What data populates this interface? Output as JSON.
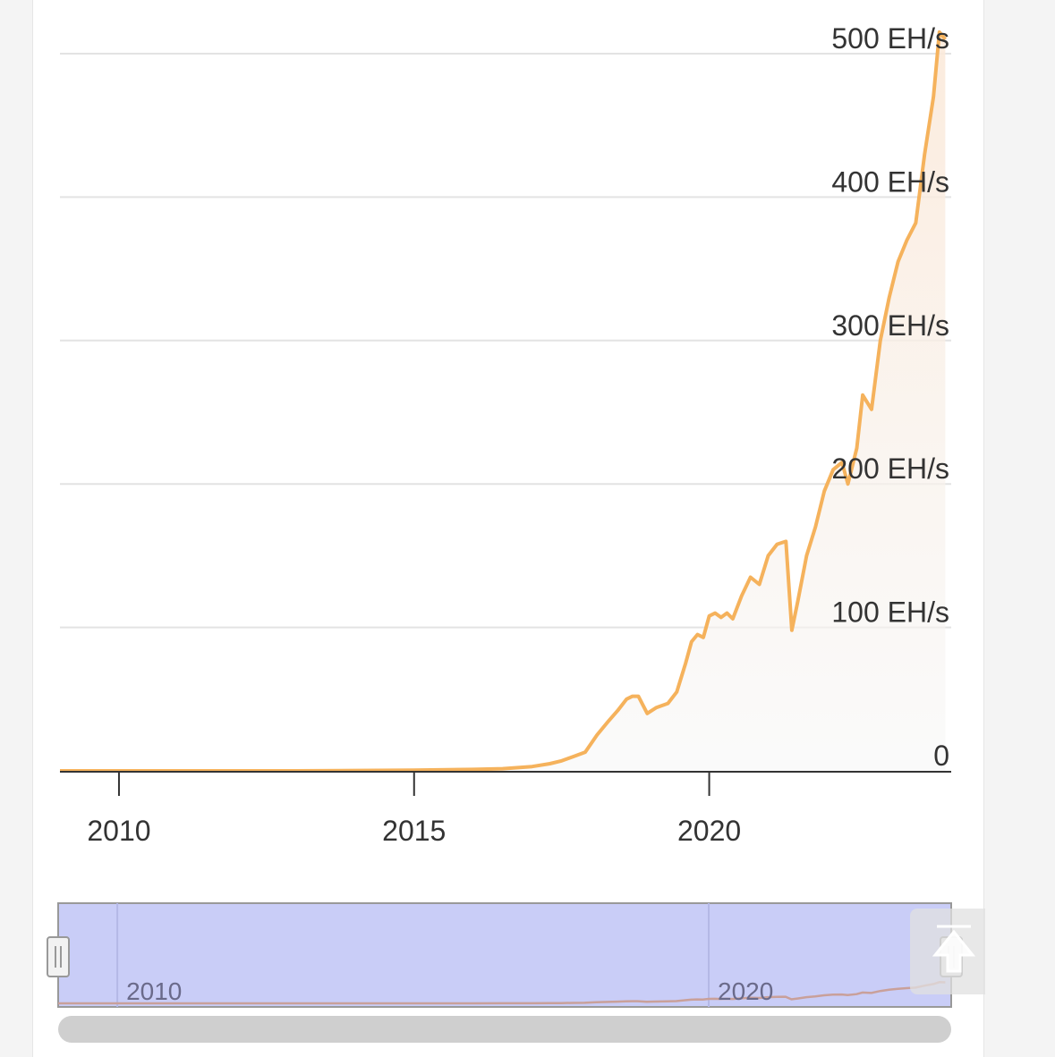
{
  "chart_data": {
    "type": "area",
    "title": "",
    "xlabel": "",
    "ylabel": "",
    "y_unit": "EH/s",
    "y_ticks": [
      "0",
      "100 EH/s",
      "200 EH/s",
      "300 EH/s",
      "400 EH/s",
      "500 EH/s"
    ],
    "y_tick_values": [
      0,
      100,
      200,
      300,
      400,
      500
    ],
    "x_ticks": [
      "2010",
      "2015",
      "2020"
    ],
    "x_tick_values": [
      2010,
      2015,
      2020
    ],
    "xlim": [
      2009.0,
      2024.1
    ],
    "ylim": [
      0,
      500
    ],
    "grid": true,
    "legend": "none",
    "line_color": "#f5b25c",
    "series": [
      {
        "values": [
          [
            2009.0,
            0
          ],
          [
            2013.0,
            0
          ],
          [
            2015.0,
            0.5
          ],
          [
            2016.0,
            1
          ],
          [
            2016.5,
            1.5
          ],
          [
            2017.0,
            3
          ],
          [
            2017.3,
            5
          ],
          [
            2017.5,
            7
          ],
          [
            2017.7,
            10
          ],
          [
            2017.9,
            13
          ],
          [
            2018.1,
            25
          ],
          [
            2018.3,
            35
          ],
          [
            2018.45,
            42
          ],
          [
            2018.6,
            50
          ],
          [
            2018.7,
            52
          ],
          [
            2018.8,
            52
          ],
          [
            2018.95,
            40
          ],
          [
            2019.1,
            44
          ],
          [
            2019.3,
            47
          ],
          [
            2019.45,
            55
          ],
          [
            2019.6,
            75
          ],
          [
            2019.7,
            90
          ],
          [
            2019.8,
            95
          ],
          [
            2019.9,
            93
          ],
          [
            2020.0,
            108
          ],
          [
            2020.1,
            110
          ],
          [
            2020.2,
            107
          ],
          [
            2020.3,
            110
          ],
          [
            2020.4,
            106
          ],
          [
            2020.55,
            122
          ],
          [
            2020.7,
            135
          ],
          [
            2020.85,
            130
          ],
          [
            2021.0,
            150
          ],
          [
            2021.15,
            158
          ],
          [
            2021.3,
            160
          ],
          [
            2021.4,
            98
          ],
          [
            2021.5,
            118
          ],
          [
            2021.65,
            150
          ],
          [
            2021.8,
            170
          ],
          [
            2021.95,
            195
          ],
          [
            2022.1,
            210
          ],
          [
            2022.25,
            215
          ],
          [
            2022.35,
            200
          ],
          [
            2022.5,
            225
          ],
          [
            2022.6,
            262
          ],
          [
            2022.75,
            252
          ],
          [
            2022.9,
            300
          ],
          [
            2023.05,
            330
          ],
          [
            2023.2,
            355
          ],
          [
            2023.35,
            370
          ],
          [
            2023.5,
            382
          ],
          [
            2023.65,
            430
          ],
          [
            2023.8,
            470
          ],
          [
            2023.9,
            515
          ],
          [
            2024.0,
            510
          ]
        ]
      }
    ],
    "navigator": {
      "x_ticks": [
        "2010",
        "2020"
      ],
      "x_tick_values": [
        2010,
        2020
      ],
      "selection": [
        2009.0,
        2024.1
      ],
      "fill_color": "#c9cdf7"
    }
  }
}
